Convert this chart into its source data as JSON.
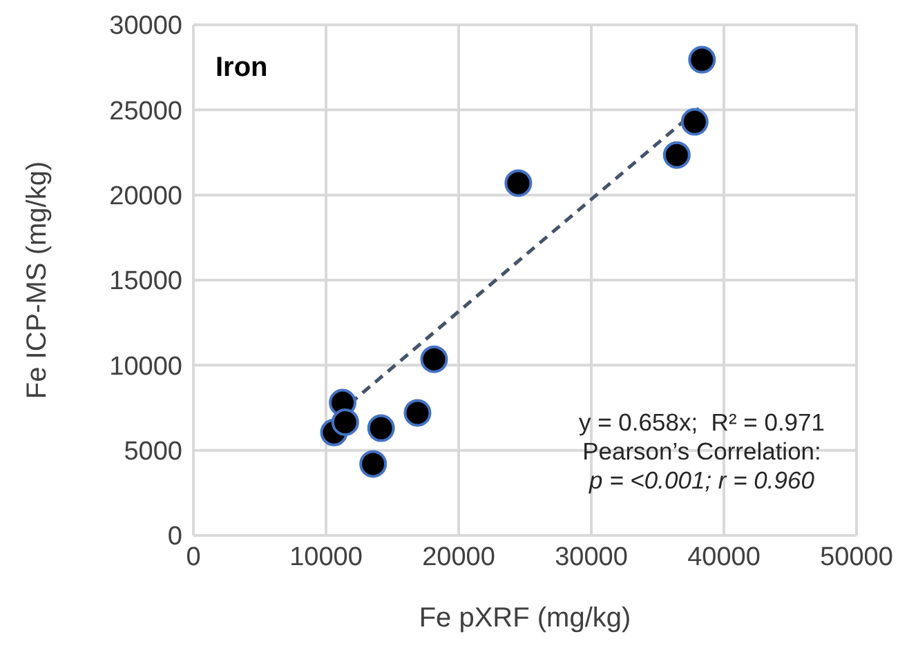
{
  "chart_data": {
    "type": "scatter",
    "xlabel": "Fe pXRF (mg/kg)",
    "ylabel": "Fe ICP-MS (mg/kg)",
    "xlim": [
      0,
      50000
    ],
    "xticks": [
      0,
      10000,
      20000,
      30000,
      40000,
      50000
    ],
    "ylim": [
      0,
      30000
    ],
    "yticks": [
      0,
      5000,
      10000,
      15000,
      20000,
      25000,
      30000
    ],
    "grid": true,
    "series": [
      {
        "color": "#000000",
        "marker": "circle",
        "x": [
          10600,
          11250,
          11450,
          13550,
          14150,
          16900,
          18150,
          24500,
          36450,
          37800,
          38350
        ],
        "values": [
          6050,
          7800,
          6650,
          4200,
          6300,
          7200,
          10350,
          20700,
          22350,
          24300,
          27950
        ]
      },
      {
        "type": "line",
        "color": "#44546a",
        "line_style": "dashed",
        "x": [
          11800,
          38200
        ],
        "values": [
          7750,
          25150
        ]
      }
    ],
    "annotations": [
      "Iron",
      "y = 0.658x;  R² = 0.971",
      "Pearson’s Correlation:",
      "p = <0.001; r = 0.960"
    ]
  }
}
